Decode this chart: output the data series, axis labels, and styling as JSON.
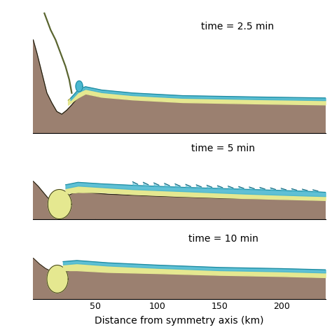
{
  "panel_times": [
    "time = 2.5 min",
    "time = 5 min",
    "time = 10 min"
  ],
  "xlabel": "Distance from symmetry axis (km)",
  "xtick_vals": [
    50,
    100,
    150,
    200
  ],
  "xlim": [
    0,
    235
  ],
  "bg_color": "#ffffff",
  "seafloor_color": "#9b8070",
  "sediment_color": "#e5e890",
  "water_color": "#4ab8d0",
  "water_edge_color": "#1e8aa0",
  "ejecta_color": "#5a6530",
  "crater_edge_color": "#1a1a0a",
  "fig_width": 4.74,
  "fig_height": 4.74,
  "dpi": 100,
  "time_fontsize": 10,
  "xlabel_fontsize": 10,
  "tick_fontsize": 9
}
